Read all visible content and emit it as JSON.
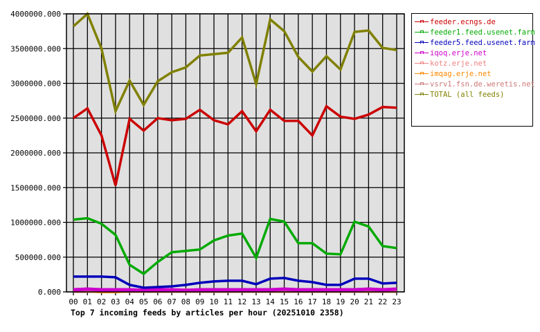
{
  "chart_data": {
    "type": "line",
    "title": "Top 7 incoming feeds by articles per hour (20251010 2358)",
    "xlabel": "",
    "ylabel": "",
    "ylim": [
      0,
      4000000
    ],
    "yticks": [
      "0.000",
      "500000.000",
      "1000000.000",
      "1500000.000",
      "2000000.000",
      "2500000.000",
      "3000000.000",
      "3500000.000",
      "4000000.000"
    ],
    "grid": true,
    "legend_position": "right",
    "categories": [
      "00",
      "01",
      "02",
      "03",
      "04",
      "05",
      "06",
      "07",
      "08",
      "09",
      "10",
      "11",
      "12",
      "13",
      "14",
      "15",
      "16",
      "17",
      "18",
      "19",
      "20",
      "21",
      "22",
      "23"
    ],
    "series": [
      {
        "name": "feeder.ecngs.de",
        "color": "#cc0000",
        "values": [
          2500000,
          2640000,
          2250000,
          1530000,
          2490000,
          2320000,
          2500000,
          2470000,
          2490000,
          2620000,
          2470000,
          2410000,
          2600000,
          2310000,
          2620000,
          2460000,
          2460000,
          2250000,
          2670000,
          2520000,
          2490000,
          2550000,
          2660000,
          2650000
        ]
      },
      {
        "name": "feeder1.feed.usenet.farm",
        "color": "#00aa00",
        "values": [
          1040000,
          1060000,
          980000,
          820000,
          390000,
          260000,
          430000,
          570000,
          590000,
          610000,
          740000,
          810000,
          840000,
          490000,
          1050000,
          1010000,
          700000,
          700000,
          550000,
          540000,
          1010000,
          940000,
          660000,
          630000
        ]
      },
      {
        "name": "feeder5.feed.usenet.farm",
        "color": "#0000bb",
        "values": [
          220000,
          220000,
          220000,
          210000,
          100000,
          60000,
          70000,
          80000,
          100000,
          130000,
          150000,
          160000,
          160000,
          110000,
          190000,
          200000,
          160000,
          140000,
          100000,
          100000,
          190000,
          190000,
          120000,
          130000
        ]
      },
      {
        "name": "iqoq.erje.net",
        "color": "#cc00cc",
        "values": [
          30000,
          40000,
          30000,
          30000,
          30000,
          20000,
          30000,
          30000,
          20000,
          30000,
          30000,
          30000,
          30000,
          30000,
          30000,
          40000,
          30000,
          30000,
          30000,
          30000,
          30000,
          40000,
          30000,
          40000
        ]
      },
      {
        "name": "kotz.erje.net",
        "color": "#f08080",
        "values": [
          25000,
          25000,
          25000,
          25000,
          25000,
          25000,
          25000,
          25000,
          25000,
          25000,
          25000,
          25000,
          25000,
          25000,
          25000,
          25000,
          25000,
          30000,
          30000,
          25000,
          25000,
          30000,
          25000,
          25000
        ]
      },
      {
        "name": "imqag.erje.net",
        "color": "#ff8800",
        "values": [
          15000,
          15000,
          5000,
          5000,
          15000,
          15000,
          15000,
          15000,
          15000,
          15000,
          15000,
          15000,
          15000,
          15000,
          15000,
          15000,
          15000,
          15000,
          15000,
          15000,
          15000,
          15000,
          15000,
          15000
        ]
      },
      {
        "name": "vsrv1.fsn.de.weretis.net",
        "color": "#cc7777",
        "values": [
          10000,
          10000,
          10000,
          10000,
          10000,
          10000,
          10000,
          10000,
          10000,
          10000,
          10000,
          10000,
          10000,
          10000,
          10000,
          10000,
          10000,
          10000,
          10000,
          10000,
          10000,
          10000,
          10000,
          10000
        ]
      },
      {
        "name": "TOTAL (all feeds)",
        "color": "#808000",
        "values": [
          3820000,
          4000000,
          3500000,
          2600000,
          3040000,
          2690000,
          3030000,
          3160000,
          3230000,
          3400000,
          3420000,
          3440000,
          3660000,
          2990000,
          3920000,
          3750000,
          3380000,
          3170000,
          3390000,
          3200000,
          3740000,
          3760000,
          3510000,
          3480000
        ]
      }
    ]
  },
  "legend": {
    "items": [
      {
        "label": "feeder.ecngs.de",
        "color": "#cc0000"
      },
      {
        "label": "feeder1.feed.usenet.farm",
        "color": "#00aa00"
      },
      {
        "label": "feeder5.feed.usenet.farm",
        "color": "#0000bb"
      },
      {
        "label": "iqoq.erje.net",
        "color": "#cc00cc"
      },
      {
        "label": "kotz.erje.net",
        "color": "#f08080"
      },
      {
        "label": "imqag.erje.net",
        "color": "#ff8800"
      },
      {
        "label": "vsrv1.fsn.de.weretis.net",
        "color": "#cc7777"
      },
      {
        "label": "TOTAL (all feeds)",
        "color": "#808000"
      }
    ]
  },
  "caption": "Top 7 incoming feeds by articles per hour (20251010 2358)"
}
